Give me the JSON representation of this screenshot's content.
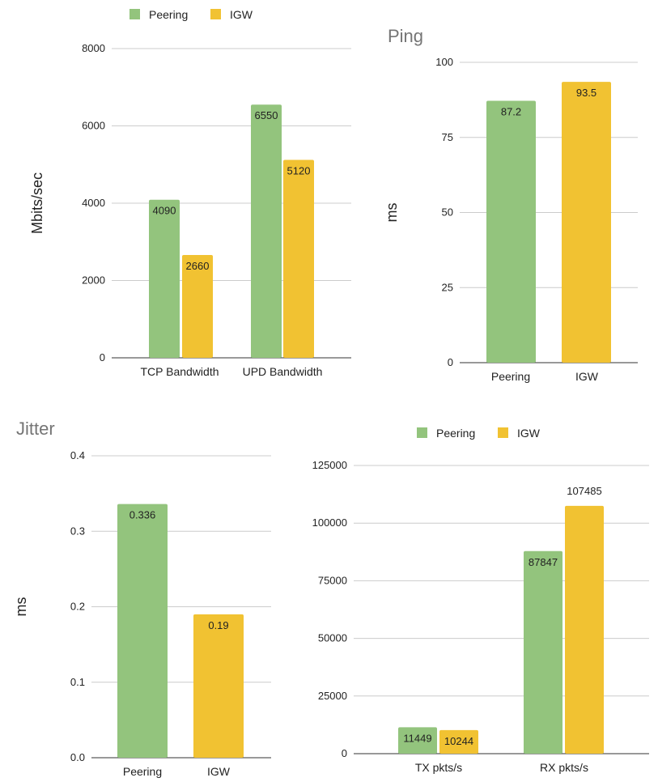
{
  "colors": {
    "peering": "#93c47d",
    "igw": "#f1c232"
  },
  "chart_data": [
    {
      "type": "bar",
      "title": "",
      "xlabel": "",
      "ylabel": "Mbits/sec",
      "ylim": [
        0,
        8000
      ],
      "yticks": [
        0,
        2000,
        4000,
        6000,
        8000
      ],
      "categories": [
        "TCP Bandwidth",
        "UPD Bandwidth"
      ],
      "legend": {
        "position": "top",
        "entries": [
          "Peering",
          "IGW"
        ]
      },
      "series": [
        {
          "name": "Peering",
          "values": [
            4090,
            6550
          ]
        },
        {
          "name": "IGW",
          "values": [
            2660,
            5120
          ]
        }
      ],
      "data_labels": [
        [
          "4090",
          "6550"
        ],
        [
          "2660",
          "5120"
        ]
      ],
      "grid": true
    },
    {
      "type": "bar",
      "title": "Ping",
      "xlabel": "",
      "ylabel": "ms",
      "ylim": [
        0,
        100
      ],
      "yticks": [
        0,
        25,
        50,
        75,
        100
      ],
      "categories": [
        "Peering",
        "IGW"
      ],
      "series": [
        {
          "values": [
            87.2,
            93.5
          ]
        }
      ],
      "data_labels": [
        [
          "87.2",
          "93.5"
        ]
      ],
      "grid": true
    },
    {
      "type": "bar",
      "title": "Jitter",
      "xlabel": "",
      "ylabel": "ms",
      "ylim": [
        0,
        0.4
      ],
      "yticks": [
        "0.0",
        "0.1",
        "0.2",
        "0.3",
        "0.4"
      ],
      "categories": [
        "Peering",
        "IGW"
      ],
      "series": [
        {
          "values": [
            0.336,
            0.19
          ]
        }
      ],
      "data_labels": [
        [
          "0.336",
          "0.19"
        ]
      ],
      "grid": true
    },
    {
      "type": "bar",
      "title": "",
      "xlabel": "",
      "ylabel": "",
      "ylim": [
        0,
        125000
      ],
      "yticks": [
        0,
        25000,
        50000,
        75000,
        100000,
        125000
      ],
      "categories": [
        "TX pkts/s",
        "RX pkts/s"
      ],
      "legend": {
        "position": "top",
        "entries": [
          "Peering",
          "IGW"
        ]
      },
      "series": [
        {
          "name": "Peering",
          "values": [
            11449,
            87847
          ]
        },
        {
          "name": "IGW",
          "values": [
            10244,
            107485
          ]
        }
      ],
      "data_labels": [
        [
          "11449",
          "87847"
        ],
        [
          "10244",
          "107485"
        ]
      ],
      "grid": true
    }
  ]
}
